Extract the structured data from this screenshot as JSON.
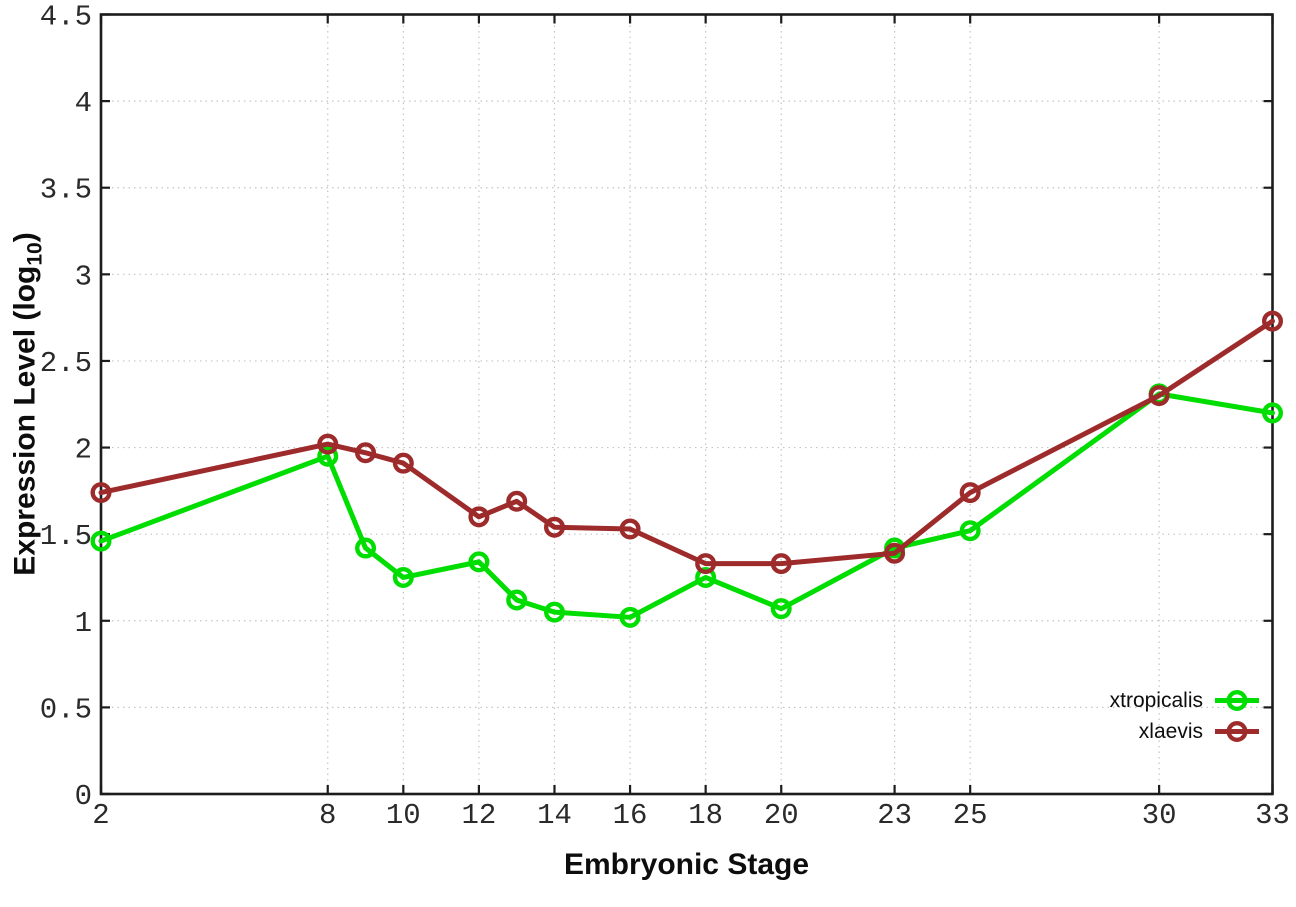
{
  "chart_data": {
    "type": "line",
    "title": "",
    "xlabel": "Embryonic Stage",
    "ylabel_prefix": "Expression Level (log",
    "ylabel_sub": "10",
    "ylabel_suffix": ")",
    "x": [
      2,
      8,
      9,
      10,
      12,
      13,
      14,
      16,
      18,
      20,
      23,
      25,
      30,
      33
    ],
    "series": [
      {
        "name": "xtropicalis",
        "color": "#00dd00",
        "values": [
          1.46,
          1.95,
          1.42,
          1.25,
          1.34,
          1.12,
          1.05,
          1.02,
          1.25,
          1.07,
          1.42,
          1.52,
          2.31,
          2.2
        ]
      },
      {
        "name": "xlaevis",
        "color": "#9e2b2b",
        "values": [
          1.74,
          2.02,
          1.97,
          1.91,
          1.6,
          1.69,
          1.54,
          1.53,
          1.33,
          1.33,
          1.39,
          1.74,
          2.3,
          2.73
        ]
      }
    ],
    "xlim": [
      2,
      33
    ],
    "ylim": [
      0,
      4.5
    ],
    "xticks": {
      "values": [
        2,
        8,
        10,
        12,
        14,
        16,
        18,
        20,
        23,
        25,
        30,
        33
      ],
      "labels": [
        "2",
        "8",
        "10",
        "12",
        "14",
        "16",
        "18",
        "20",
        "23",
        "25",
        "30",
        "33"
      ]
    },
    "yticks": {
      "values": [
        0,
        0.5,
        1,
        1.5,
        2,
        2.5,
        3,
        3.5,
        4,
        4.5
      ],
      "labels": [
        "0",
        "0.5",
        "1",
        "1.5",
        "2",
        "2.5",
        "3",
        "3.5",
        "4",
        "4.5"
      ]
    },
    "grid": true,
    "legend_position": "bottom-right"
  },
  "style": {
    "axis_color": "#1c1c1c",
    "grid_color": "#c4c4c4",
    "background": "#ffffff",
    "tick_text_color": "#2a2a2a"
  }
}
